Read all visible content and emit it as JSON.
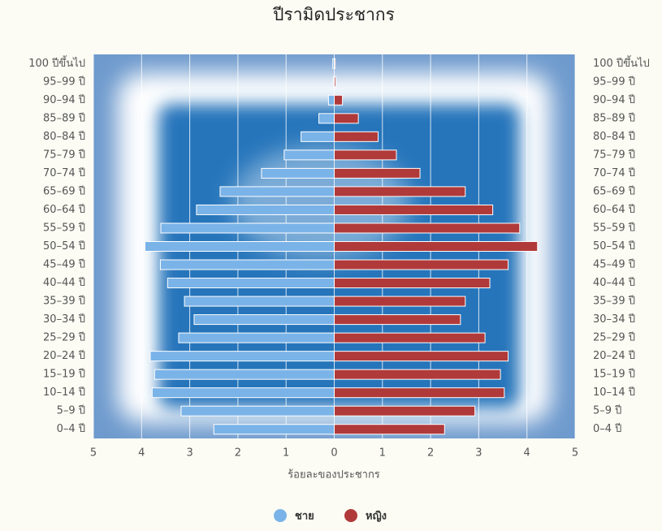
{
  "chart_data": {
    "type": "pyramid",
    "title": "ปีรามิดประชากร",
    "x_label": "ร้อยละของประชากร",
    "categories": [
      "100 ปีขึ้นไป",
      "95–99 ปี",
      "90–94 ปี",
      "85–89 ปี",
      "80–84 ปี",
      "75–79 ปี",
      "70–74 ปี",
      "65–69 ปี",
      "60–64 ปี",
      "55–59 ปี",
      "50–54 ปี",
      "45–49 ปี",
      "40–44 ปี",
      "35–39 ปี",
      "30–34 ปี",
      "25–29 ปี",
      "20–24 ปี",
      "15–19 ปี",
      "10–14 ปี",
      "5–9 ปี",
      "0–4 ปี"
    ],
    "series": [
      {
        "name": "ชาย",
        "color": "#7ab3e8",
        "side": "left",
        "values": [
          0.03,
          0.02,
          0.12,
          0.32,
          0.69,
          1.04,
          1.51,
          2.37,
          2.86,
          3.6,
          3.93,
          3.61,
          3.46,
          3.11,
          2.91,
          3.23,
          3.82,
          3.73,
          3.78,
          3.18,
          2.5
        ]
      },
      {
        "name": "หญิง",
        "color": "#b03a3a",
        "side": "right",
        "values": [
          0.02,
          0.03,
          0.17,
          0.5,
          0.91,
          1.29,
          1.78,
          2.72,
          3.29,
          3.85,
          4.22,
          3.61,
          3.23,
          2.72,
          2.62,
          3.13,
          3.61,
          3.45,
          3.53,
          2.92,
          2.29
        ]
      }
    ],
    "xlim": [
      -5,
      5
    ],
    "xticks": [
      {
        "value": -5,
        "label": "5"
      },
      {
        "value": -4,
        "label": "4"
      },
      {
        "value": -3,
        "label": "3"
      },
      {
        "value": -2,
        "label": "2"
      },
      {
        "value": -1,
        "label": "1"
      },
      0,
      1,
      2,
      3,
      4,
      5
    ],
    "grid": true
  }
}
